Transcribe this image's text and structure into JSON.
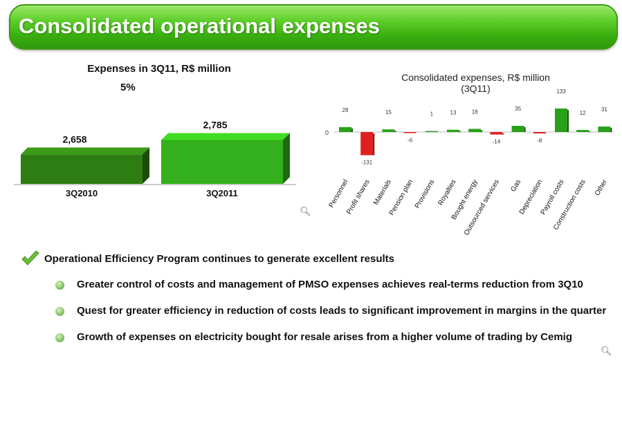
{
  "header": {
    "title": "Consolidated operational expenses"
  },
  "left_chart": {
    "title": "Expenses in 3Q11, R$ million",
    "change_label": "5%"
  },
  "right_chart": {
    "title": "Consolidated expenses, R$ million (3Q11)",
    "zero_label": "0"
  },
  "chart_data": [
    {
      "type": "bar",
      "title": "Expenses in 3Q11, R$ million",
      "categories": [
        "3Q2010",
        "3Q2011"
      ],
      "values": [
        2658,
        2785
      ],
      "value_labels": [
        "2,658",
        "2,785"
      ],
      "colors": [
        "#2e7d12",
        "#33b01c"
      ],
      "annotation": "5%",
      "ylim": [
        2400,
        2800
      ]
    },
    {
      "type": "bar",
      "title": "Consolidated expenses, R$ million (3Q11)",
      "categories": [
        "Personnel",
        "Profit shares",
        "Materials",
        "Pension plan",
        "Provisions",
        "Royalties",
        "Bought energy",
        "Outsourced services",
        "Gas",
        "Depreciation",
        "Payroll costs",
        "Construction costs",
        "Other"
      ],
      "values": [
        28,
        -131,
        15,
        -6,
        1,
        13,
        18,
        -14,
        35,
        -8,
        133,
        12,
        31
      ],
      "positive_color": "#2aa01a",
      "negative_color": "#e02020",
      "ylim": [
        -140,
        140
      ]
    }
  ],
  "bullets": {
    "main": "Operational Efficiency Program continues to generate excellent results",
    "items": [
      "Greater control of costs and management of PMSO expenses achieves real-terms reduction from 3Q10",
      "Quest for greater efficiency in reduction of costs leads to significant improvement in margins in the quarter",
      "Growth of expenses on electricity bought for resale arises from a higher volume of trading by Cemig"
    ]
  },
  "icons": {
    "zoom": "magnifier-icon",
    "check": "checkmark-icon"
  }
}
